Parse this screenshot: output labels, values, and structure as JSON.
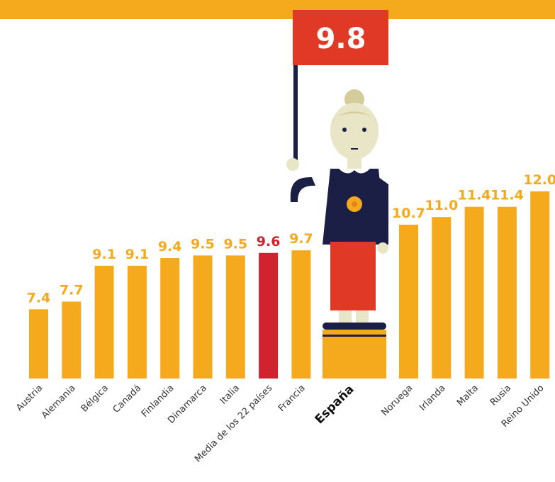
{
  "chart_data": {
    "type": "bar",
    "categories": [
      "Austria",
      "Alemania",
      "Bélgica",
      "Canadá",
      "Finlandia",
      "Dinamarca",
      "Italia",
      "Media de los 22 países",
      "Francia",
      "España",
      "Noruega",
      "Irlanda",
      "Malta",
      "Rusia",
      "Reino Unido"
    ],
    "values": [
      7.4,
      7.7,
      9.1,
      9.1,
      9.4,
      9.5,
      9.5,
      9.6,
      9.7,
      9.8,
      10.7,
      11.0,
      11.4,
      11.4,
      12.0
    ],
    "value_labels": [
      "7.4",
      "7.7",
      "9.1",
      "9.1",
      "9.4",
      "9.5",
      "9.5",
      "9.6",
      "9.7",
      "9.8",
      "10.7",
      "11.0",
      "11.4",
      "11.4",
      "12.0"
    ],
    "colors": [
      "#f5a91c",
      "#f5a91c",
      "#f5a91c",
      "#f5a91c",
      "#f5a91c",
      "#f5a91c",
      "#f5a91c",
      "#d0232f",
      "#f5a91c",
      "#e03a26",
      "#f5a91c",
      "#f5a91c",
      "#f5a91c",
      "#f5a91c",
      "#f5a91c"
    ],
    "ylim": [
      4.7,
      12.0
    ]
  }
}
